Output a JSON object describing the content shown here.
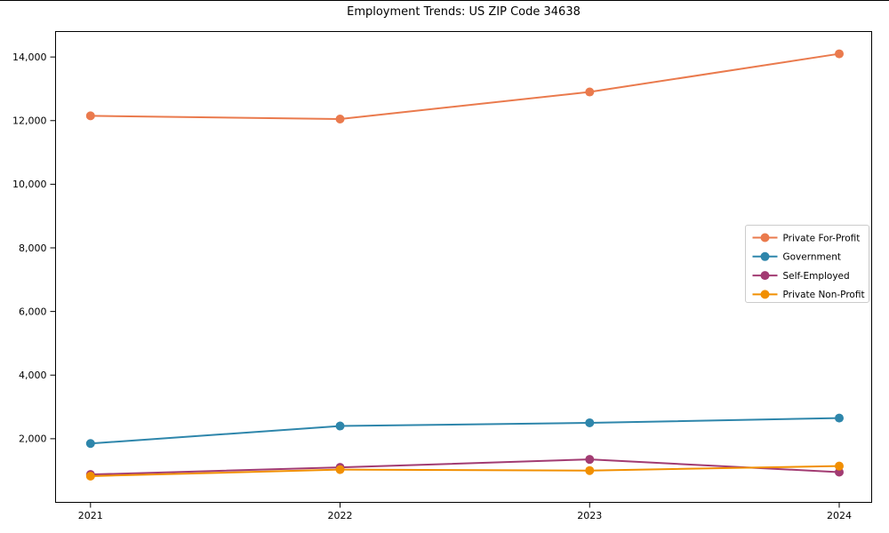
{
  "title": "Employment Trends: US ZIP Code 34638",
  "chart_data": {
    "type": "line",
    "title": "Employment Trends: US ZIP Code 34638",
    "xlabel": "",
    "ylabel": "",
    "x": [
      2021,
      2022,
      2023,
      2024
    ],
    "x_tick_labels": [
      "2021",
      "2022",
      "2023",
      "2024"
    ],
    "y_ticks": [
      2000,
      4000,
      6000,
      8000,
      10000,
      12000,
      14000
    ],
    "y_tick_labels": [
      "2,000",
      "4,000",
      "6,000",
      "8,000",
      "10,000",
      "12,000",
      "14,000"
    ],
    "xlim": [
      2020.86,
      2024.13
    ],
    "ylim": [
      0,
      14800
    ],
    "grid": false,
    "legend_position": "center right",
    "marker": "circle",
    "series": [
      {
        "name": "Private For-Profit",
        "color": "#EA7A4D",
        "values": [
          12150,
          12050,
          12900,
          14100
        ]
      },
      {
        "name": "Government",
        "color": "#2E86AB",
        "values": [
          1850,
          2400,
          2500,
          2650
        ]
      },
      {
        "name": "Self-Employed",
        "color": "#A23B72",
        "values": [
          875,
          1100,
          1350,
          950
        ]
      },
      {
        "name": "Private Non-Profit",
        "color": "#F18F01",
        "values": [
          825,
          1030,
          1000,
          1140
        ]
      }
    ]
  }
}
